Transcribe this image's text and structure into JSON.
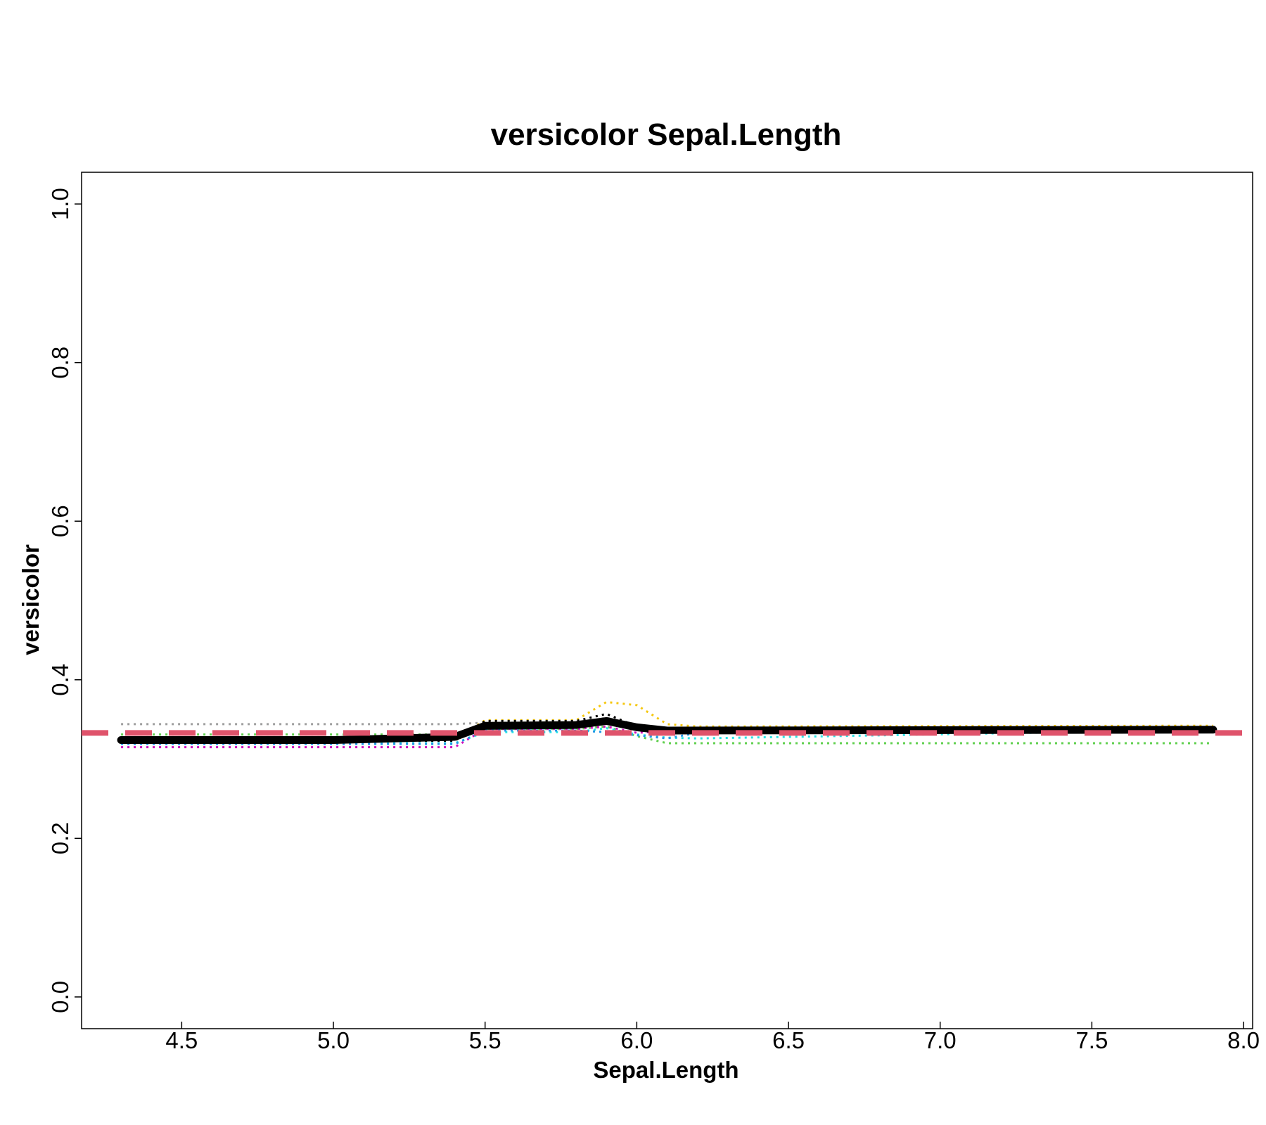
{
  "chart_data": {
    "type": "line",
    "title": "versicolor  Sepal.Length",
    "xlabel": "Sepal.Length",
    "ylabel": "versicolor",
    "xlim": [
      4.17,
      8.03
    ],
    "ylim": [
      -0.04,
      1.04
    ],
    "x_ticks": [
      {
        "value": 4.5,
        "label": "4.5"
      },
      {
        "value": 5.0,
        "label": "5.0"
      },
      {
        "value": 5.5,
        "label": "5.5"
      },
      {
        "value": 6.0,
        "label": "6.0"
      },
      {
        "value": 6.5,
        "label": "6.5"
      },
      {
        "value": 7.0,
        "label": "7.0"
      },
      {
        "value": 7.5,
        "label": "7.5"
      },
      {
        "value": 8.0,
        "label": "8.0"
      }
    ],
    "y_ticks": [
      {
        "value": 0.0,
        "label": "0.0"
      },
      {
        "value": 0.2,
        "label": "0.2"
      },
      {
        "value": 0.4,
        "label": "0.4"
      },
      {
        "value": 0.6,
        "label": "0.6"
      },
      {
        "value": 0.8,
        "label": "0.8"
      },
      {
        "value": 1.0,
        "label": "1.0"
      }
    ],
    "grid": false,
    "legend": "none",
    "reference_line": {
      "y": 0.333,
      "color": "#DF536B",
      "style": "dashed"
    },
    "series": [
      {
        "color": "#9E9E9E",
        "style": "dotted",
        "x": [
          4.3,
          5.4,
          5.5,
          5.8,
          5.9,
          6.0,
          6.1,
          7.9
        ],
        "y": [
          0.344,
          0.344,
          0.346,
          0.345,
          0.352,
          0.343,
          0.339,
          0.339
        ]
      },
      {
        "color": "#61D04F",
        "style": "dotted",
        "x": [
          4.3,
          5.4,
          5.5,
          5.8,
          5.9,
          6.0,
          6.1,
          7.9
        ],
        "y": [
          0.331,
          0.331,
          0.338,
          0.338,
          0.341,
          0.329,
          0.32,
          0.32
        ]
      },
      {
        "color": "#CD0BBC",
        "style": "dotted",
        "x": [
          4.3,
          5.4,
          5.5,
          5.8,
          5.9,
          6.0,
          6.1,
          7.9
        ],
        "y": [
          0.315,
          0.315,
          0.338,
          0.338,
          0.341,
          0.333,
          0.336,
          0.336
        ]
      },
      {
        "color": "#28E2E5",
        "style": "dotted",
        "x": [
          4.3,
          5.4,
          5.5,
          5.8,
          5.9,
          6.0,
          6.1,
          6.2,
          7.9
        ],
        "y": [
          0.32,
          0.32,
          0.334,
          0.334,
          0.339,
          0.331,
          0.327,
          0.326,
          0.337
        ]
      },
      {
        "color": "#2297E6",
        "style": "dotted",
        "x": [
          4.3,
          5.4,
          5.5,
          5.8,
          5.9,
          6.0,
          6.1,
          6.2,
          7.9
        ],
        "y": [
          0.319,
          0.319,
          0.336,
          0.336,
          0.334,
          0.33,
          0.326,
          0.333,
          0.337
        ]
      },
      {
        "color": "#F5C710",
        "style": "dotted",
        "x": [
          4.3,
          5.4,
          5.5,
          5.8,
          5.9,
          6.0,
          6.1,
          6.2,
          7.9
        ],
        "y": [
          0.324,
          0.324,
          0.349,
          0.349,
          0.372,
          0.368,
          0.344,
          0.341,
          0.342
        ]
      },
      {
        "color": "#000000",
        "style": "dotted",
        "x": [
          4.3,
          5.4,
          5.5,
          5.8,
          5.9,
          6.0,
          6.1,
          7.9
        ],
        "y": [
          0.323,
          0.323,
          0.348,
          0.348,
          0.357,
          0.341,
          0.336,
          0.336
        ]
      },
      {
        "color": "#000000",
        "style": "solid-thick",
        "x": [
          4.3,
          5.0,
          5.4,
          5.5,
          5.8,
          5.9,
          6.0,
          6.1,
          7.9
        ],
        "y": [
          0.324,
          0.324,
          0.328,
          0.342,
          0.343,
          0.348,
          0.34,
          0.336,
          0.337
        ]
      }
    ]
  }
}
